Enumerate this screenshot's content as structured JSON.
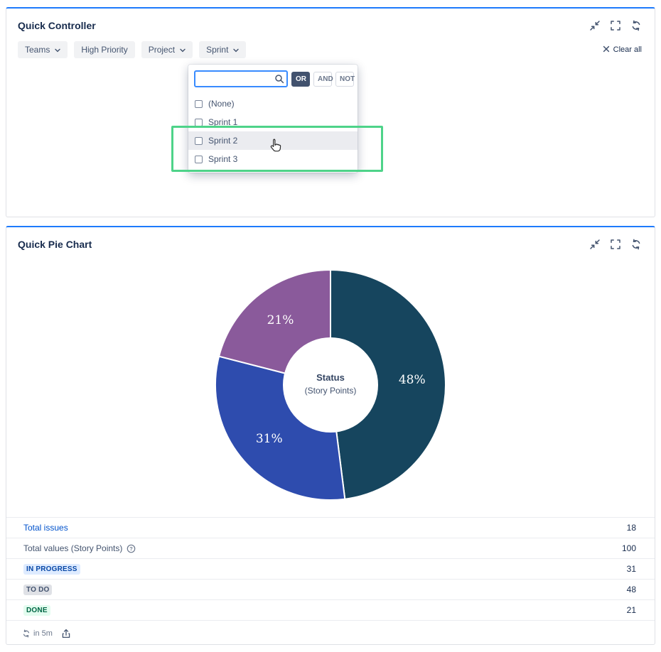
{
  "panels": {
    "controller": {
      "title": "Quick Controller",
      "filters": [
        {
          "label": "Teams"
        },
        {
          "label": "High Priority"
        },
        {
          "label": "Project"
        },
        {
          "label": "Sprint"
        }
      ],
      "clear_all_label": "Clear all",
      "dropdown": {
        "search_value": "",
        "search_placeholder": "",
        "operators": [
          "OR",
          "AND",
          "NOT"
        ],
        "selected_operator": "OR",
        "options": [
          "(None)",
          "Sprint 1",
          "Sprint 2",
          "Sprint 3"
        ],
        "hovered_option": "Sprint 2"
      },
      "annotation_color": "#4ed389"
    },
    "pie": {
      "title": "Quick Pie Chart",
      "footer": {
        "refresh_label": "in 5m"
      }
    }
  },
  "icons": {
    "panel_actions": [
      "collapse-icon",
      "expand-icon",
      "refresh-icon"
    ],
    "other": [
      "clear-x-icon",
      "search-icon",
      "chevron-down-icon",
      "help-icon",
      "export-icon",
      "refresh-small-icon",
      "mouse-cursor"
    ]
  },
  "chart_data": {
    "type": "pie",
    "donut": true,
    "title": "Status (Story Points)",
    "center": {
      "title": "Status",
      "subtitle": "(Story Points)"
    },
    "start_angle": 0,
    "clockwise_from_top": true,
    "total": 100,
    "label_color": "#ffffff",
    "slices": [
      {
        "label": "TO DO",
        "value": 48,
        "text": "48%",
        "color": "#16455e"
      },
      {
        "label": "IN PROGRESS",
        "value": 31,
        "text": "31%",
        "color": "#2e4cae"
      },
      {
        "label": "DONE",
        "value": 21,
        "text": "21%",
        "color": "#8a5a9b"
      }
    ]
  },
  "stats": {
    "rows": [
      {
        "style": "link",
        "label": "Total issues",
        "value": "18",
        "color": "#0052cc"
      },
      {
        "style": "plain",
        "label": "Total values (Story Points)",
        "value": "100",
        "help_icon": true
      },
      {
        "style": "badge",
        "label": "IN PROGRESS",
        "value": "31",
        "badge_bg": "#deebff",
        "badge_fg": "#0747a6"
      },
      {
        "style": "badge",
        "label": "TO DO",
        "value": "48",
        "badge_bg": "#dfe1e6",
        "badge_fg": "#42526e"
      },
      {
        "style": "badge",
        "label": "DONE",
        "value": "21",
        "badge_bg": "#e3fcef",
        "badge_fg": "#006644"
      }
    ]
  }
}
